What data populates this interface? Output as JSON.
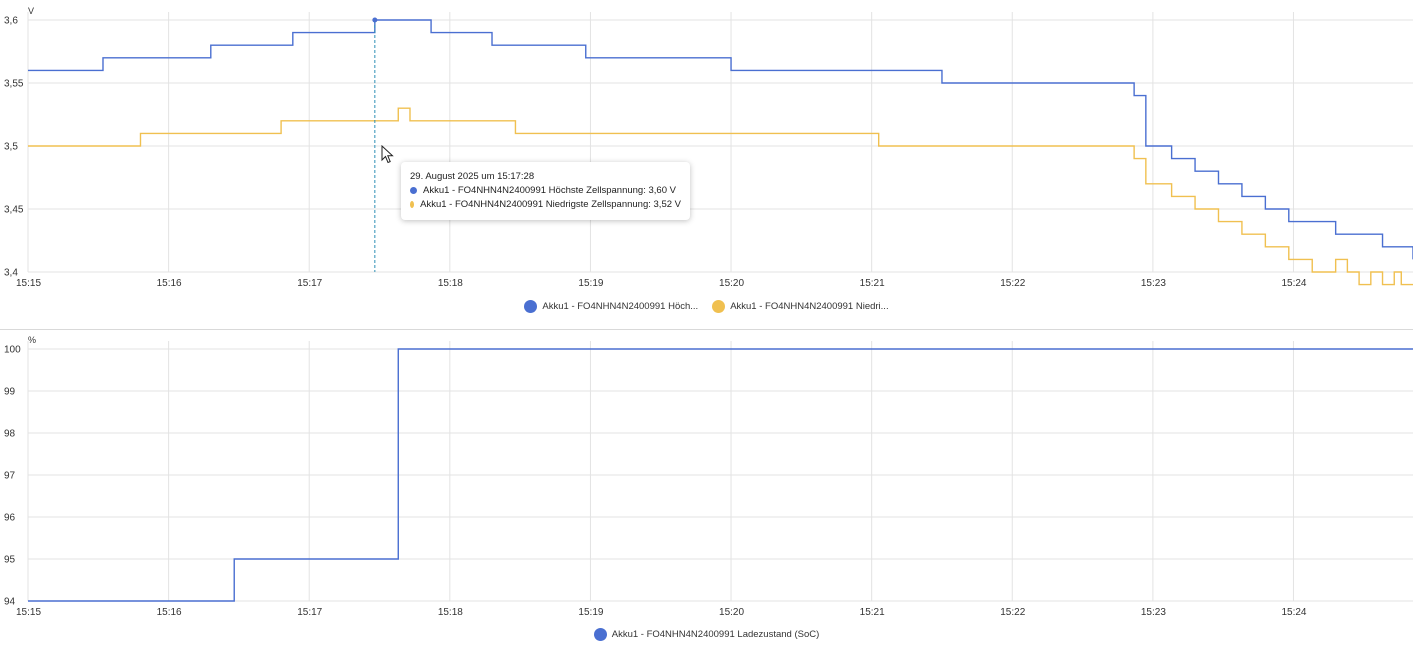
{
  "colors": {
    "blue": "#4a6fd1",
    "yellow": "#f0c050",
    "grid": "#e3e3e3",
    "crosshair": "#2e8fb5"
  },
  "chart_data": [
    {
      "type": "line",
      "step": true,
      "unit": "V",
      "x_ticks": [
        "15:15",
        "15:16",
        "15:17",
        "15:18",
        "15:19",
        "15:20",
        "15:21",
        "15:22",
        "15:23",
        "15:24"
      ],
      "y_ticks": [
        "3,6",
        "3,55",
        "3,5",
        "3,45",
        "3,4"
      ],
      "xlim": [
        "15:15:00",
        "15:24:51"
      ],
      "ylim": [
        3.4,
        3.6
      ],
      "series": [
        {
          "name": "Akku1 - FO4NHN4N2400991 Höchste Zellspannung",
          "color": "#4a6fd1",
          "x": [
            "15:15:00",
            "15:15:32",
            "15:16:18",
            "15:16:53",
            "15:17:28",
            "15:17:52",
            "15:18:18",
            "15:18:58",
            "15:20:00",
            "15:21:30",
            "15:22:52",
            "15:22:57",
            "15:23:08",
            "15:23:18",
            "15:23:28",
            "15:23:38",
            "15:23:48",
            "15:23:58",
            "15:24:18",
            "15:24:38",
            "15:24:51"
          ],
          "y": [
            3.56,
            3.57,
            3.58,
            3.59,
            3.6,
            3.59,
            3.58,
            3.57,
            3.56,
            3.55,
            3.54,
            3.5,
            3.49,
            3.48,
            3.47,
            3.46,
            3.45,
            3.44,
            3.43,
            3.42,
            3.41
          ]
        },
        {
          "name": "Akku1 - FO4NHN4N2400991 Niedrigste Zellspannung",
          "color": "#f0c050",
          "x": [
            "15:15:00",
            "15:15:48",
            "15:16:48",
            "15:17:38",
            "15:17:43",
            "15:18:28",
            "15:21:03",
            "15:22:52",
            "15:22:57",
            "15:23:08",
            "15:23:18",
            "15:23:28",
            "15:23:38",
            "15:23:48",
            "15:23:58",
            "15:24:08",
            "15:24:18",
            "15:24:23",
            "15:24:28",
            "15:24:33",
            "15:24:38",
            "15:24:43",
            "15:24:46"
          ],
          "y": [
            3.5,
            3.51,
            3.52,
            3.53,
            3.52,
            3.51,
            3.5,
            3.49,
            3.47,
            3.46,
            3.45,
            3.44,
            3.43,
            3.42,
            3.41,
            3.4,
            3.41,
            3.4,
            3.39,
            3.4,
            3.39,
            3.4,
            3.39
          ]
        }
      ]
    },
    {
      "type": "line",
      "step": true,
      "unit": "%",
      "x_ticks": [
        "15:15",
        "15:16",
        "15:17",
        "15:18",
        "15:19",
        "15:20",
        "15:21",
        "15:22",
        "15:23",
        "15:24"
      ],
      "y_ticks": [
        "100",
        "99",
        "98",
        "97",
        "96",
        "95",
        "94"
      ],
      "xlim": [
        "15:15:00",
        "15:24:51"
      ],
      "ylim": [
        94,
        100
      ],
      "series": [
        {
          "name": "Akku1 - FO4NHN4N2400991 Ladezustand (SoC)",
          "color": "#4a6fd1",
          "x": [
            "15:15:00",
            "15:16:28",
            "15:17:38",
            "15:24:51"
          ],
          "y": [
            94,
            95,
            100,
            100
          ]
        }
      ]
    }
  ],
  "legend_top": [
    {
      "label": "Akku1 - FO4NHN4N2400991 Höch...",
      "color": "#4a6fd1"
    },
    {
      "label": "Akku1 - FO4NHN4N2400991 Niedri...",
      "color": "#f0c050"
    }
  ],
  "legend_bottom": [
    {
      "label": "Akku1 - FO4NHN4N2400991 Ladezustand (SoC)",
      "color": "#4a6fd1"
    }
  ],
  "tooltip": {
    "title": "29. August 2025 um 15:17:28",
    "x": "15:17:28",
    "rows": [
      {
        "label": "Akku1 - FO4NHN4N2400991 Höchste Zellspannung: 3,60 V",
        "color": "#4a6fd1"
      },
      {
        "label": "Akku1 - FO4NHN4N2400991 Niedrigste Zellspannung: 3,52 V",
        "color": "#f0c050"
      }
    ]
  }
}
